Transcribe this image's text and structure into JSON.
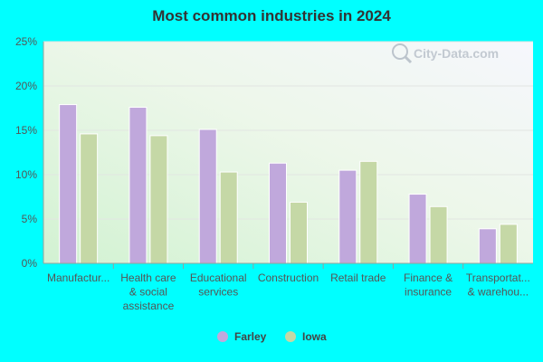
{
  "chart_data": {
    "type": "bar",
    "title": "Most common industries in 2024",
    "categories": [
      [
        "Manufactur..."
      ],
      [
        "Health care",
        "& social",
        "assistance"
      ],
      [
        "Educational",
        "services"
      ],
      [
        "Construction"
      ],
      [
        "Retail trade"
      ],
      [
        "Finance &",
        "insurance"
      ],
      [
        "Transportat...",
        "& warehou..."
      ]
    ],
    "series": [
      {
        "name": "Farley",
        "color": "#c0a8dc",
        "values": [
          17.9,
          17.6,
          15.1,
          11.3,
          10.5,
          7.8,
          3.9
        ]
      },
      {
        "name": "Iowa",
        "color": "#c5d8a6",
        "values": [
          14.6,
          14.4,
          10.3,
          6.9,
          11.5,
          6.4,
          4.4
        ]
      }
    ],
    "ylim": [
      0,
      25
    ],
    "yticks": [
      0,
      5,
      10,
      15,
      20,
      25
    ],
    "ytick_labels": [
      "0%",
      "5%",
      "10%",
      "15%",
      "20%",
      "25%"
    ],
    "grid": true,
    "legend_position": "bottom-center",
    "watermark": "City-Data.com"
  }
}
